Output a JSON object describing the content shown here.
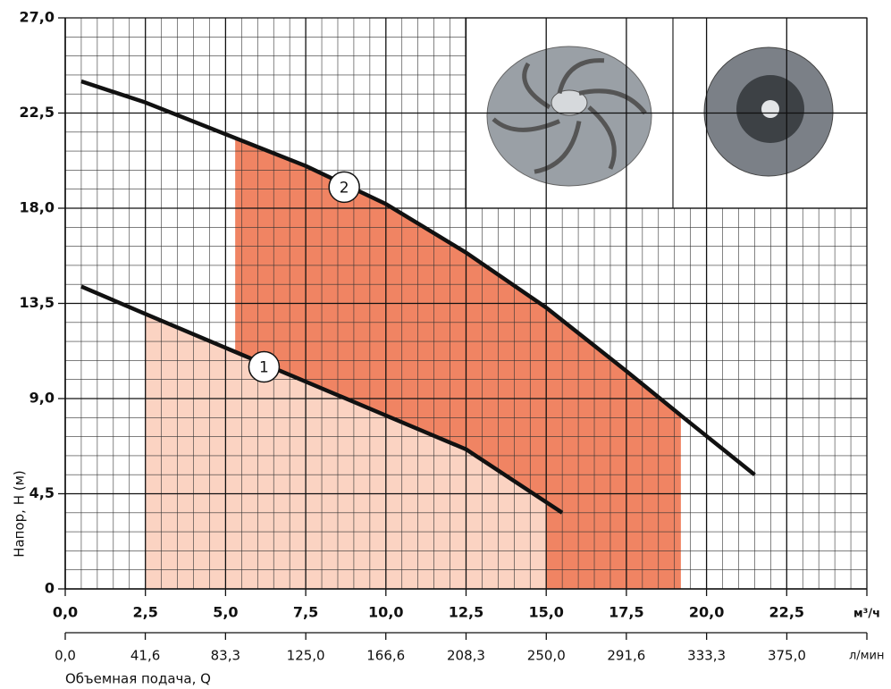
{
  "chart_data": {
    "type": "line",
    "y_label": "Напор, H (м)",
    "x_label": "Объемная подача, Q",
    "x_unit": "м³/ч",
    "x2_unit": "л/мин",
    "xlim": [
      0,
      25
    ],
    "ylim": [
      0,
      27
    ],
    "x2lim": [
      0,
      416.6
    ],
    "grid": true,
    "xticks": [
      {
        "value": 0,
        "label": "0,0"
      },
      {
        "value": 2.5,
        "label": "2,5"
      },
      {
        "value": 5,
        "label": "5,0"
      },
      {
        "value": 7.5,
        "label": "7,5"
      },
      {
        "value": 10,
        "label": "10,0"
      },
      {
        "value": 12.5,
        "label": "12,5"
      },
      {
        "value": 15,
        "label": "15,0"
      },
      {
        "value": 17.5,
        "label": "17,5"
      },
      {
        "value": 20,
        "label": "20,0"
      },
      {
        "value": 22.5,
        "label": "22,5"
      }
    ],
    "x2ticks": [
      {
        "value": 0,
        "label": "0,0"
      },
      {
        "value": 41.6,
        "label": "41,6"
      },
      {
        "value": 83.3,
        "label": "83,3"
      },
      {
        "value": 125,
        "label": "125,0"
      },
      {
        "value": 166.6,
        "label": "166,6"
      },
      {
        "value": 208.3,
        "label": "208,3"
      },
      {
        "value": 250,
        "label": "250,0"
      },
      {
        "value": 291.6,
        "label": "291,6"
      },
      {
        "value": 333.3,
        "label": "333,3"
      },
      {
        "value": 375,
        "label": "375,0"
      }
    ],
    "yticks": [
      0,
      {
        "value": 4.5,
        "label": "4,5"
      },
      {
        "value": 9,
        "label": "9,0"
      },
      {
        "value": 13.5,
        "label": "13,5"
      },
      {
        "value": 18,
        "label": "18,0"
      },
      {
        "value": 22.5,
        "label": "22,5"
      },
      {
        "value": 27,
        "label": "27,0"
      }
    ],
    "series": [
      {
        "name": "1",
        "color": "#111111",
        "x": [
          0.5,
          2.5,
          5,
          7.5,
          10,
          12.5,
          15.5
        ],
        "values": [
          14.3,
          13.0,
          11.4,
          9.8,
          8.2,
          6.6,
          3.6
        ]
      },
      {
        "name": "2",
        "color": "#111111",
        "x": [
          0.5,
          2.5,
          5,
          7.5,
          10,
          12.5,
          15,
          17.5,
          19.2,
          21.5
        ],
        "values": [
          24.0,
          23.0,
          21.5,
          20.0,
          18.2,
          15.9,
          13.3,
          10.3,
          8.2,
          5.4
        ]
      }
    ],
    "regions": [
      {
        "series": 1,
        "from": 5.3,
        "to": 19.2,
        "color": "#f08463"
      },
      {
        "series": 0,
        "from": 2.5,
        "to": 15.0,
        "color": "#fbd3c2"
      }
    ]
  }
}
